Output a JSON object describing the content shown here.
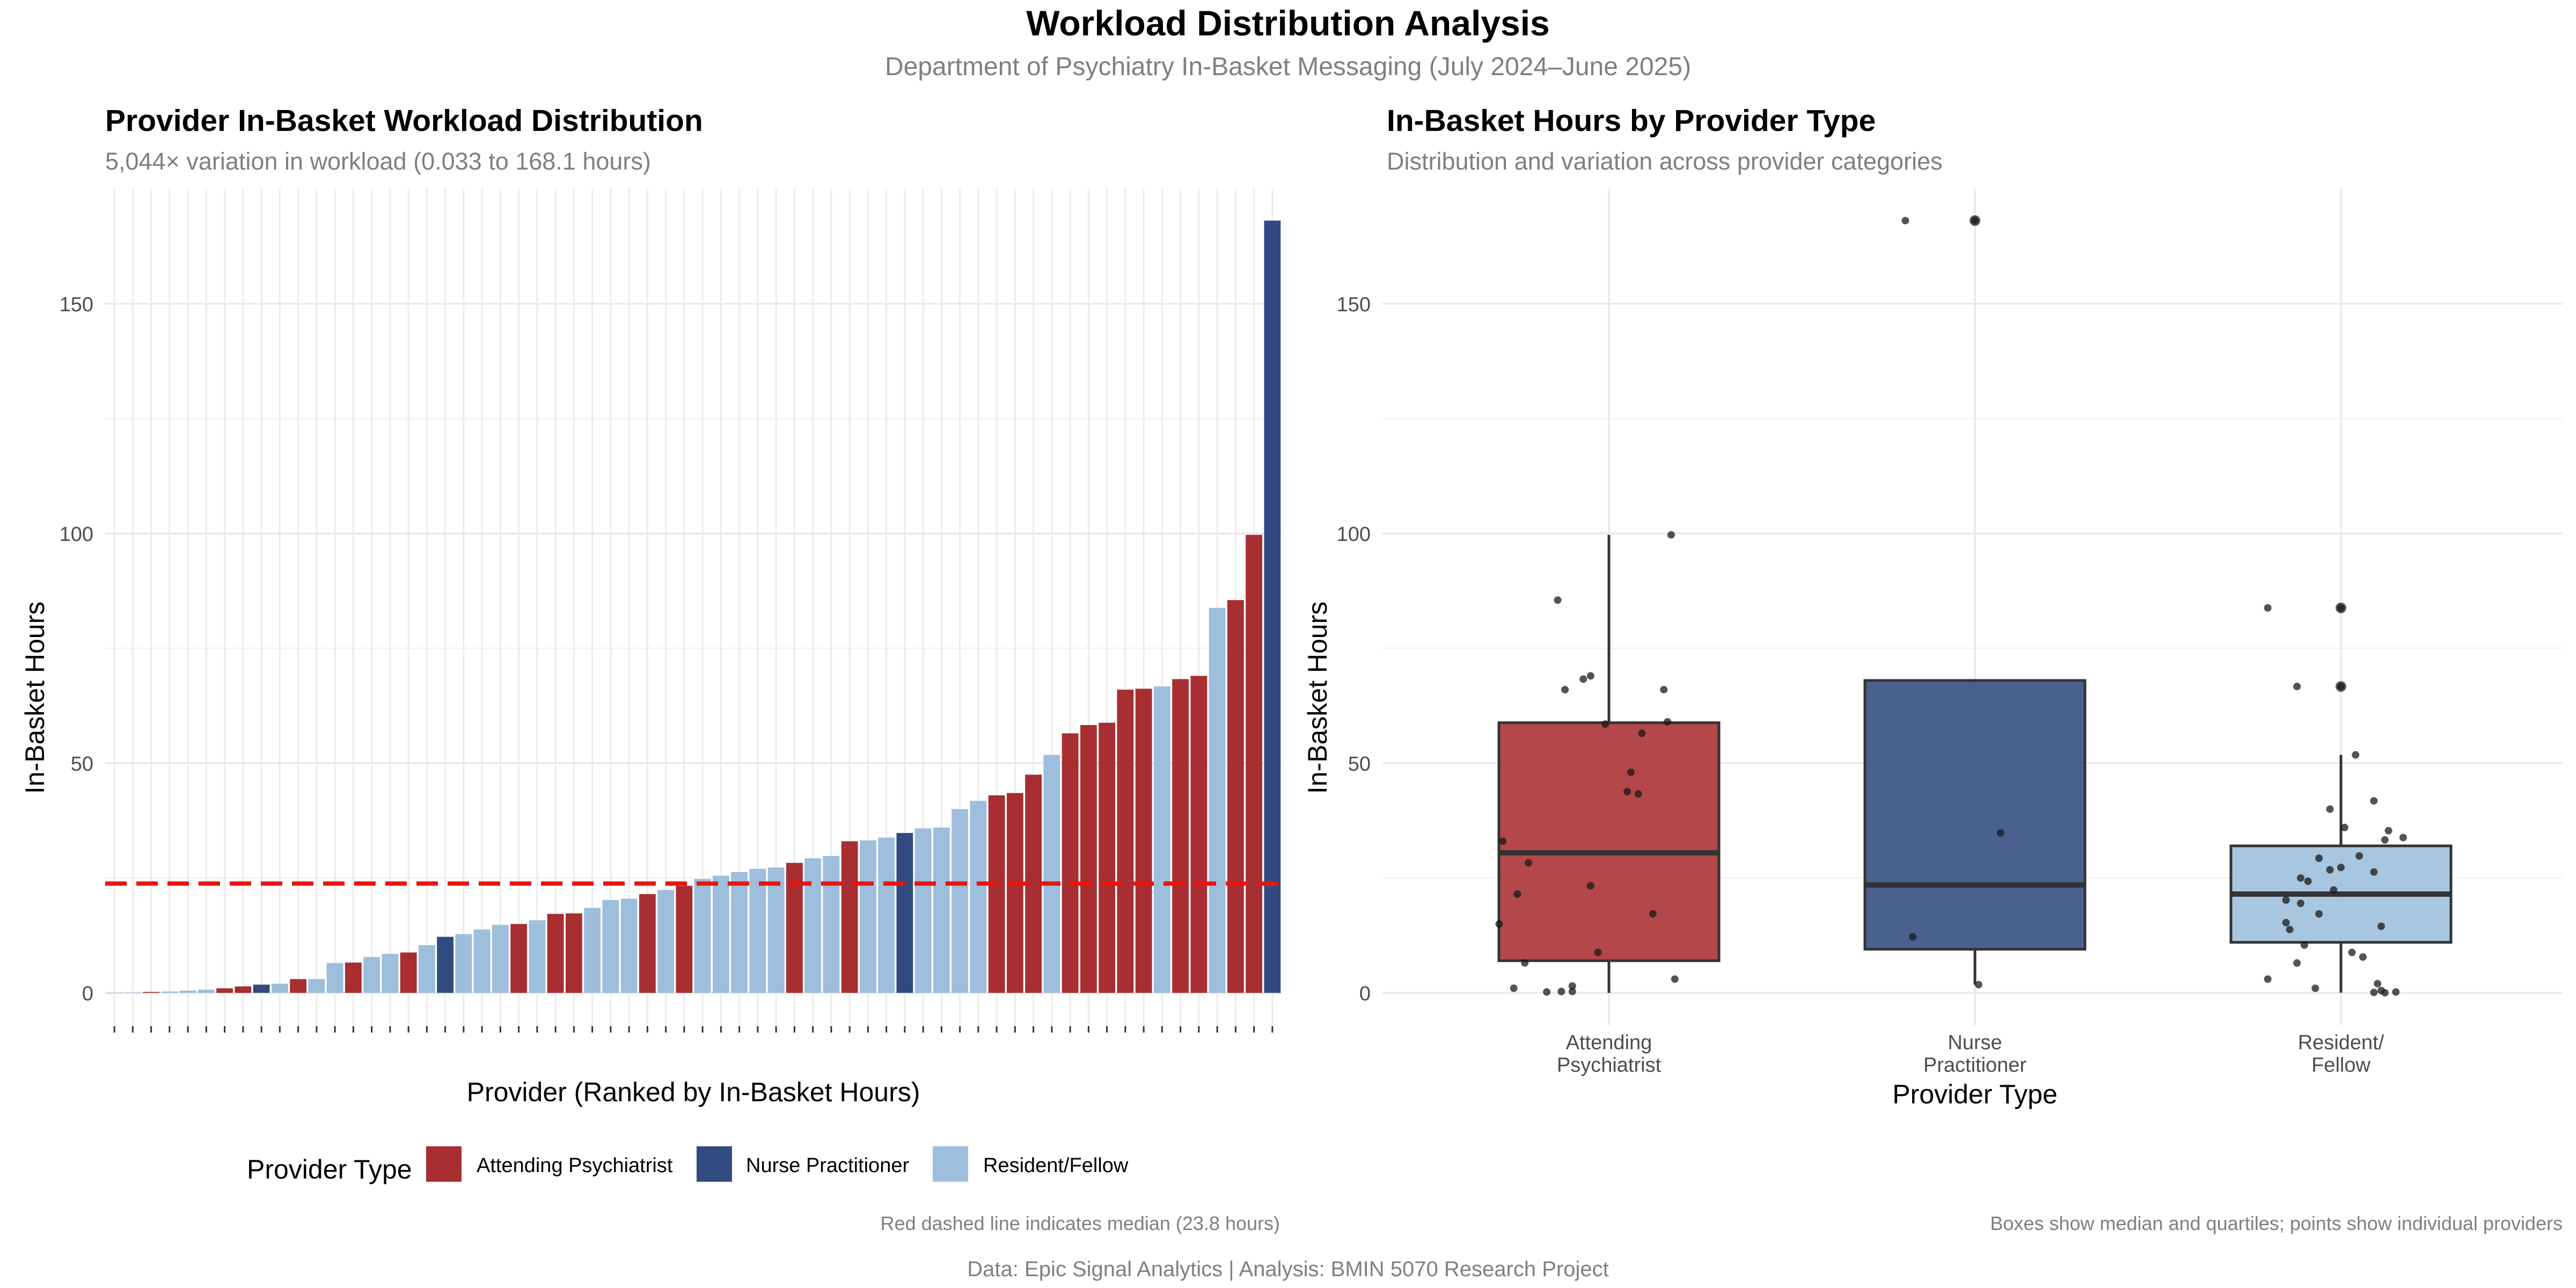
{
  "figure": {
    "title": "Workload Distribution Analysis",
    "subtitle": "Department of Psychiatry In-Basket Messaging (July 2024–June 2025)",
    "footer": "Data: Epic Signal Analytics | Analysis: BMIN 5070 Research Project"
  },
  "colors": {
    "attending": "#A82E31",
    "np": "#314B80",
    "resident": "#9DBEDC",
    "median_line": "#E8140F",
    "grid": "#EBEBEB",
    "text": "#000000",
    "muted": "#7F7F7F",
    "tick": "#4D4D4D"
  },
  "legend": {
    "title": "Provider Type",
    "items": [
      {
        "label": "Attending Psychiatrist",
        "key": "attending"
      },
      {
        "label": "Nurse Practitioner",
        "key": "np"
      },
      {
        "label": "Resident/Fellow",
        "key": "resident"
      }
    ]
  },
  "chart_data": [
    {
      "type": "bar",
      "title": "Provider In-Basket Workload Distribution",
      "subtitle": "5,044× variation in workload (0.033 to 168.1 hours)",
      "xlabel": "Provider (Ranked by In-Basket Hours)",
      "ylabel": "In-Basket Hours",
      "ylim": [
        -7,
        175
      ],
      "yticks": [
        0,
        50,
        100,
        150
      ],
      "grid": true,
      "median": 23.8,
      "caption": "Red dashed line indicates median (23.8 hours)",
      "bars": [
        {
          "type": "resident",
          "value": 0.033
        },
        {
          "type": "resident",
          "value": 0.1
        },
        {
          "type": "attending",
          "value": 0.2
        },
        {
          "type": "resident",
          "value": 0.3
        },
        {
          "type": "resident",
          "value": 0.5
        },
        {
          "type": "resident",
          "value": 0.7
        },
        {
          "type": "attending",
          "value": 1.0
        },
        {
          "type": "attending",
          "value": 1.4
        },
        {
          "type": "np",
          "value": 1.8
        },
        {
          "type": "resident",
          "value": 2.0
        },
        {
          "type": "attending",
          "value": 3.0
        },
        {
          "type": "resident",
          "value": 3.0
        },
        {
          "type": "resident",
          "value": 6.5
        },
        {
          "type": "attending",
          "value": 6.6
        },
        {
          "type": "resident",
          "value": 7.8
        },
        {
          "type": "resident",
          "value": 8.5
        },
        {
          "type": "attending",
          "value": 8.8
        },
        {
          "type": "resident",
          "value": 10.4
        },
        {
          "type": "np",
          "value": 12.2
        },
        {
          "type": "resident",
          "value": 12.8
        },
        {
          "type": "resident",
          "value": 13.8
        },
        {
          "type": "resident",
          "value": 14.8
        },
        {
          "type": "attending",
          "value": 15.0
        },
        {
          "type": "resident",
          "value": 15.8
        },
        {
          "type": "attending",
          "value": 17.2
        },
        {
          "type": "attending",
          "value": 17.3
        },
        {
          "type": "resident",
          "value": 18.5
        },
        {
          "type": "resident",
          "value": 20.2
        },
        {
          "type": "resident",
          "value": 20.5
        },
        {
          "type": "attending",
          "value": 21.5
        },
        {
          "type": "resident",
          "value": 22.4
        },
        {
          "type": "attending",
          "value": 23.3
        },
        {
          "type": "resident",
          "value": 24.8
        },
        {
          "type": "resident",
          "value": 25.5
        },
        {
          "type": "resident",
          "value": 26.3
        },
        {
          "type": "resident",
          "value": 27.0
        },
        {
          "type": "resident",
          "value": 27.3
        },
        {
          "type": "attending",
          "value": 28.3
        },
        {
          "type": "resident",
          "value": 29.3
        },
        {
          "type": "resident",
          "value": 29.8
        },
        {
          "type": "attending",
          "value": 33.0
        },
        {
          "type": "resident",
          "value": 33.2
        },
        {
          "type": "resident",
          "value": 33.8
        },
        {
          "type": "np",
          "value": 34.8
        },
        {
          "type": "resident",
          "value": 35.8
        },
        {
          "type": "resident",
          "value": 36.0
        },
        {
          "type": "resident",
          "value": 40.0
        },
        {
          "type": "resident",
          "value": 41.8
        },
        {
          "type": "attending",
          "value": 43.0
        },
        {
          "type": "attending",
          "value": 43.5
        },
        {
          "type": "attending",
          "value": 47.5
        },
        {
          "type": "resident",
          "value": 51.8
        },
        {
          "type": "attending",
          "value": 56.5
        },
        {
          "type": "attending",
          "value": 58.3
        },
        {
          "type": "attending",
          "value": 58.8
        },
        {
          "type": "attending",
          "value": 66.0
        },
        {
          "type": "attending",
          "value": 66.2
        },
        {
          "type": "resident",
          "value": 66.7
        },
        {
          "type": "attending",
          "value": 68.3
        },
        {
          "type": "attending",
          "value": 69.0
        },
        {
          "type": "resident",
          "value": 83.8
        },
        {
          "type": "attending",
          "value": 85.5
        },
        {
          "type": "attending",
          "value": 99.7
        },
        {
          "type": "np",
          "value": 168.1
        }
      ]
    },
    {
      "type": "box",
      "title": "In-Basket Hours by Provider Type",
      "subtitle": "Distribution and variation across provider categories",
      "xlabel": "Provider Type",
      "ylabel": "In-Basket Hours",
      "ylim": [
        -7,
        175
      ],
      "yticks": [
        0,
        50,
        100,
        150
      ],
      "grid": true,
      "caption": "Boxes show median and quartiles; points show individual providers",
      "groups": [
        {
          "key": "attending",
          "label_lines": [
            "Attending",
            "Psychiatrist"
          ],
          "q1": 7.0,
          "median": 30.5,
          "q3": 58.8,
          "whisker_low": 0.0,
          "whisker_high": 99.7,
          "outliers": [],
          "points": [
            [
              -0.14,
              85.5
            ],
            [
              -0.12,
              66.0
            ],
            [
              -0.07,
              68.3
            ],
            [
              -0.05,
              69.0
            ],
            [
              0.15,
              66.0
            ],
            [
              0.16,
              59.0
            ],
            [
              -0.01,
              58.5
            ],
            [
              0.09,
              56.5
            ],
            [
              0.06,
              48.0
            ],
            [
              0.05,
              43.8
            ],
            [
              0.08,
              43.3
            ],
            [
              -0.29,
              33.0
            ],
            [
              -0.22,
              28.3
            ],
            [
              -0.25,
              21.5
            ],
            [
              -0.05,
              23.3
            ],
            [
              0.12,
              17.2
            ],
            [
              -0.3,
              15.0
            ],
            [
              -0.03,
              8.8
            ],
            [
              -0.23,
              6.5
            ],
            [
              0.18,
              3.0
            ],
            [
              -0.1,
              1.5
            ],
            [
              -0.26,
              1.0
            ],
            [
              -0.17,
              0.2
            ],
            [
              -0.1,
              0.3
            ],
            [
              -0.13,
              0.3
            ],
            [
              0.17,
              99.7
            ]
          ]
        },
        {
          "key": "np",
          "label_lines": [
            "Nurse",
            "Practitioner"
          ],
          "q1": 9.5,
          "median": 23.5,
          "q3": 68.0,
          "whisker_low": 1.8,
          "whisker_high": 68.0,
          "outliers": [
            168.1
          ],
          "points": [
            [
              -0.19,
              168.1
            ],
            [
              0.0,
              168.1
            ],
            [
              0.07,
              34.8
            ],
            [
              -0.17,
              12.2
            ],
            [
              0.01,
              1.8
            ]
          ]
        },
        {
          "key": "resident",
          "label_lines": [
            "Resident/",
            "Fellow"
          ],
          "q1": 11.0,
          "median": 21.5,
          "q3": 32.0,
          "whisker_low": 0.033,
          "whisker_high": 51.8,
          "outliers": [
            66.7,
            83.8
          ],
          "points": [
            [
              -0.2,
              83.8
            ],
            [
              0.0,
              83.8
            ],
            [
              -0.12,
              66.7
            ],
            [
              0.0,
              66.7
            ],
            [
              0.04,
              51.8
            ],
            [
              0.09,
              41.8
            ],
            [
              -0.03,
              40.0
            ],
            [
              0.01,
              36.0
            ],
            [
              0.13,
              35.3
            ],
            [
              0.12,
              33.3
            ],
            [
              0.17,
              33.8
            ],
            [
              -0.06,
              29.3
            ],
            [
              0.05,
              29.8
            ],
            [
              0.0,
              27.3
            ],
            [
              -0.03,
              26.8
            ],
            [
              0.09,
              26.3
            ],
            [
              -0.11,
              25.0
            ],
            [
              -0.09,
              24.3
            ],
            [
              -0.02,
              22.4
            ],
            [
              -0.15,
              20.2
            ],
            [
              -0.11,
              19.5
            ],
            [
              -0.06,
              17.2
            ],
            [
              -0.15,
              15.3
            ],
            [
              -0.14,
              13.8
            ],
            [
              0.11,
              14.5
            ],
            [
              -0.1,
              10.4
            ],
            [
              0.03,
              8.8
            ],
            [
              0.06,
              7.8
            ],
            [
              -0.12,
              6.5
            ],
            [
              -0.2,
              3.0
            ],
            [
              0.1,
              2.0
            ],
            [
              -0.07,
              1.0
            ],
            [
              0.11,
              0.5
            ],
            [
              0.15,
              0.2
            ],
            [
              0.09,
              0.1
            ],
            [
              0.12,
              0.03
            ]
          ]
        }
      ]
    }
  ]
}
